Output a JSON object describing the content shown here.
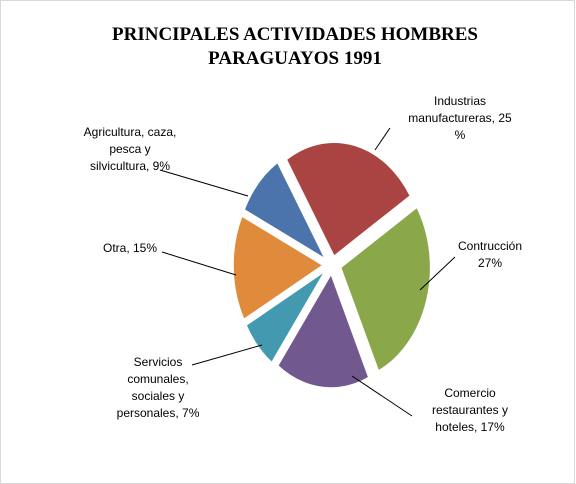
{
  "chart_data": {
    "type": "pie",
    "title": "PRINCIPALES ACTIVIDADES HOMBRES\nPARAGUAYOS 1991",
    "labels": [
      "Industrias\nmanufactureras, 25\n%",
      "Contrucción\n27%",
      "Comercio\nrestaurantes y\nhoteles, 17%",
      "Servicios\ncomunales,\nsociales y\npersonales, 7%",
      "Otra, 15%",
      "Agricultura, caza,\npesca y\nsilvicultura, 9%"
    ],
    "values": [
      25,
      27,
      17,
      7,
      15,
      9
    ],
    "colors": [
      "#a94442",
      "#8aa84a",
      "#71588f",
      "#4299b0",
      "#e08a3c",
      "#4a74ab"
    ]
  }
}
